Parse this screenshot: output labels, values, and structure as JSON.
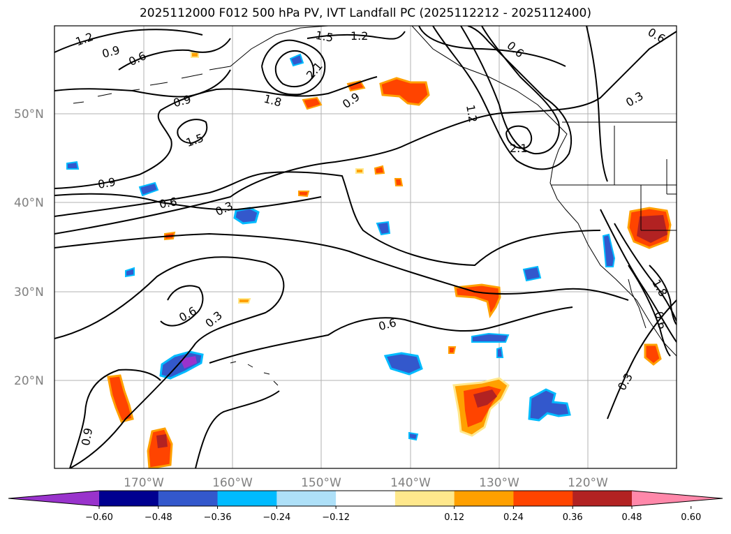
{
  "title": "2025112000 F012 500 hPa PV, IVT Landfall PC (2025112212 - 2025112400)",
  "map": {
    "lat_labels": [
      "50°N",
      "40°N",
      "30°N",
      "20°N"
    ],
    "lon_labels": [
      "170°W",
      "160°W",
      "150°W",
      "140°W",
      "130°W",
      "120°W"
    ]
  },
  "contour_labels": [
    "1.2",
    "0.9",
    "0.6",
    "1.5",
    "1.2",
    "2.1",
    "0.9",
    "1.8",
    "0.9",
    "1.5",
    "0.6",
    "1.2",
    "2.1",
    "0.3",
    "0.6",
    "0.9",
    "0.6",
    "0.3",
    "0.6",
    "0.3",
    "0.6",
    "0.3",
    "0.9",
    "1.8",
    "0.6"
  ],
  "colorbar": {
    "tick_labels": [
      "−0.60",
      "−0.48",
      "−0.36",
      "−0.24",
      "−0.12",
      "0.12",
      "0.24",
      "0.36",
      "0.48",
      "0.60"
    ],
    "colors": [
      "#9933cc",
      "#000090",
      "#3358cc",
      "#00bbff",
      "#aee0f8",
      "#ffffff",
      "#ffe88c",
      "#ffa000",
      "#ff4400",
      "#b22222",
      "#ff88aa"
    ]
  }
}
